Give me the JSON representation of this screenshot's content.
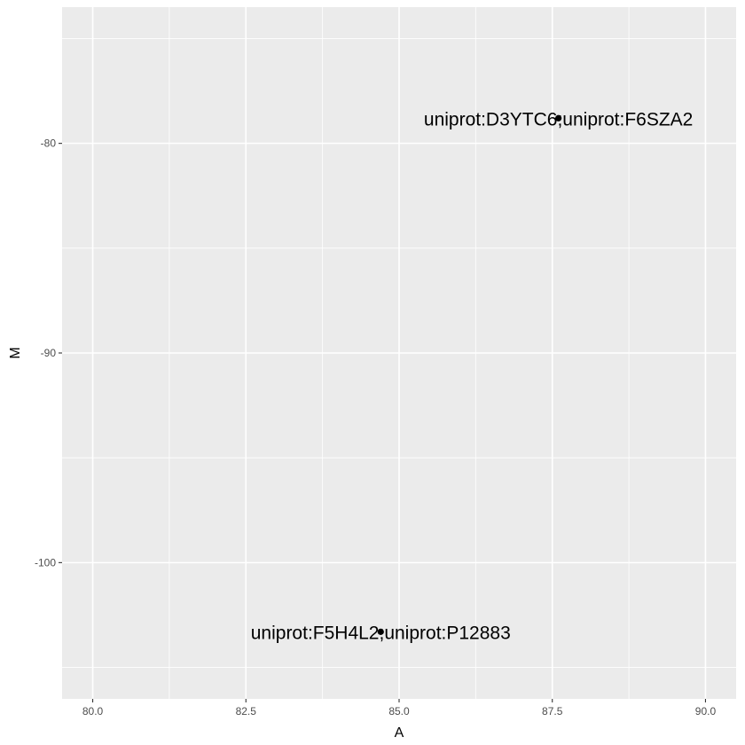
{
  "chart_data": {
    "type": "scatter",
    "title": "",
    "xlabel": "A",
    "ylabel": "M",
    "xlim": [
      79.5,
      90.5
    ],
    "ylim": [
      -106.5,
      -73.5
    ],
    "x_ticks": [
      80.0,
      82.5,
      85.0,
      87.5,
      90.0
    ],
    "x_tick_labels": [
      "80.0",
      "82.5",
      "85.0",
      "87.5",
      "90.0"
    ],
    "x_minor": [
      81.25,
      83.75,
      86.25,
      88.75
    ],
    "y_ticks": [
      -100,
      -90,
      -80
    ],
    "y_tick_labels": [
      "-100",
      "-90",
      "-80"
    ],
    "y_minor": [
      -105,
      -95,
      -85,
      -75
    ],
    "grid": true,
    "points": [
      {
        "x": 87.6,
        "y": -78.8,
        "label": "uniprot:D3YTC6;uniprot:F6SZA2"
      },
      {
        "x": 84.7,
        "y": -103.3,
        "label": "uniprot:F5H4L2;uniprot:P12883"
      }
    ],
    "colors": {
      "panel": "#ebebeb",
      "grid": "#ffffff",
      "point": "#000000",
      "tick": "#333333",
      "tick_label": "#4d4d4d"
    }
  }
}
